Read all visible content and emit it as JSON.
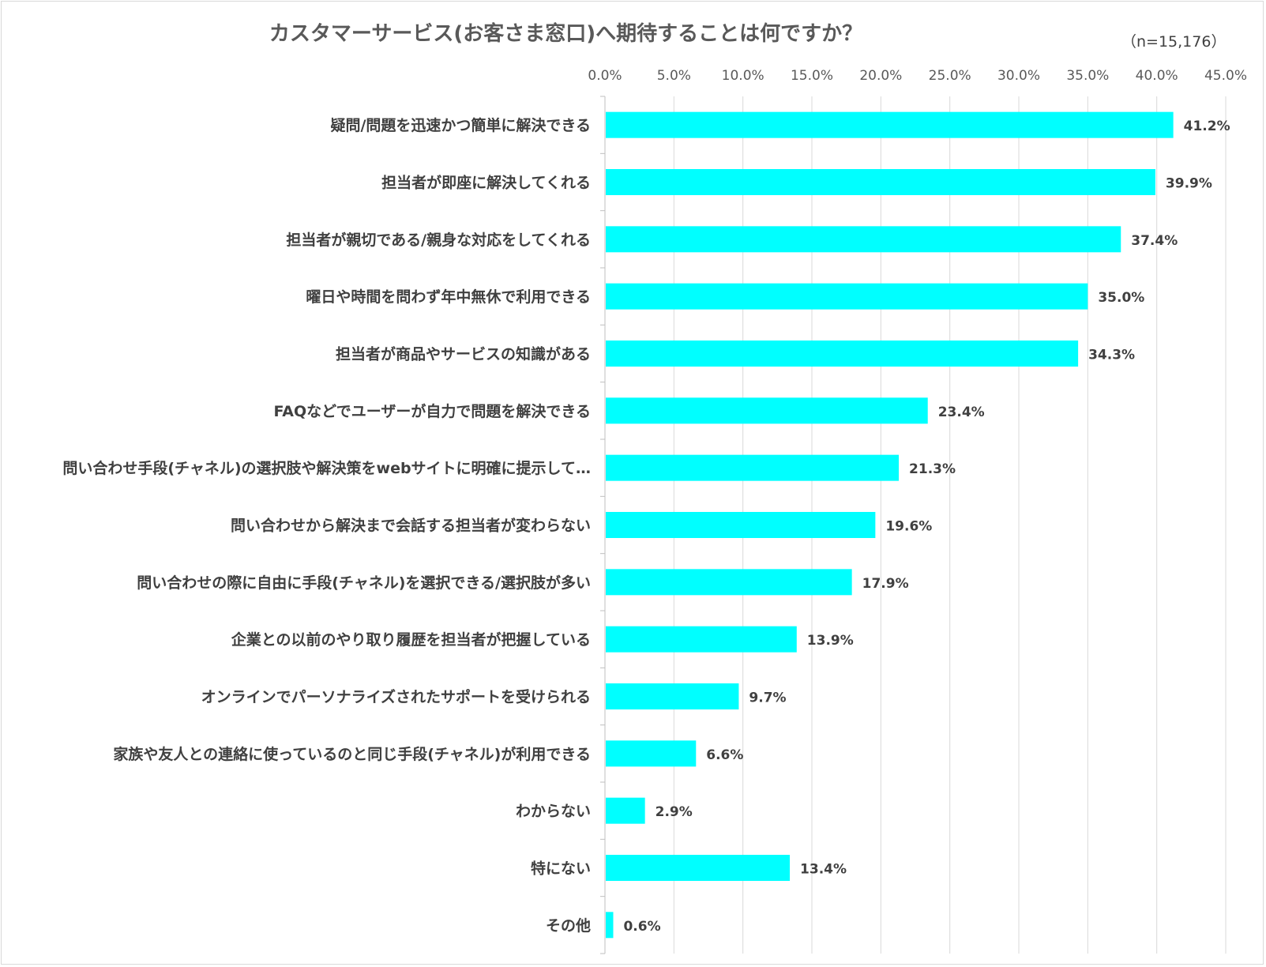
{
  "chart_data": {
    "type": "bar",
    "orientation": "horizontal",
    "title": "カスタマーサービス(お客さま窓口)へ期待することは何ですか？",
    "note": "（n=15,176）",
    "xlim": [
      0,
      45
    ],
    "x_ticks": [
      "0.0%",
      "5.0%",
      "10.0%",
      "15.0%",
      "20.0%",
      "25.0%",
      "30.0%",
      "35.0%",
      "40.0%",
      "45.0%"
    ],
    "tick_step": 5,
    "grid": true,
    "bar_color": "#00FFFF",
    "categories": [
      "疑問/問題を迅速かつ簡単に解決できる",
      "担当者が即座に解決してくれる",
      "担当者が親切である/親身な対応をしてくれる",
      "曜日や時間を問わず年中無休で利用できる",
      "担当者が商品やサービスの知識がある",
      "FAQなどでユーザーが自力で問題を解決できる",
      "問い合わせ手段(チャネル)の選択肢や解決策をwebサイトに明確に提示して…",
      "問い合わせから解決まで会話する担当者が変わらない",
      "問い合わせの際に自由に手段(チャネル)を選択できる/選択肢が多い",
      "企業との以前のやり取り履歴を担当者が把握している",
      "オンラインでパーソナライズされたサポートを受けられる",
      "家族や友人との連絡に使っているのと同じ手段(チャネル)が利用できる",
      "わからない",
      "特にない",
      "その他"
    ],
    "values": [
      41.2,
      39.9,
      37.4,
      35.0,
      34.3,
      23.4,
      21.3,
      19.6,
      17.9,
      13.9,
      9.7,
      6.6,
      2.9,
      13.4,
      0.6
    ],
    "value_labels": [
      "41.2%",
      "39.9%",
      "37.4%",
      "35.0%",
      "34.3%",
      "23.4%",
      "21.3%",
      "19.6%",
      "17.9%",
      "13.9%",
      "9.7%",
      "6.6%",
      "2.9%",
      "13.4%",
      "0.6%"
    ]
  }
}
